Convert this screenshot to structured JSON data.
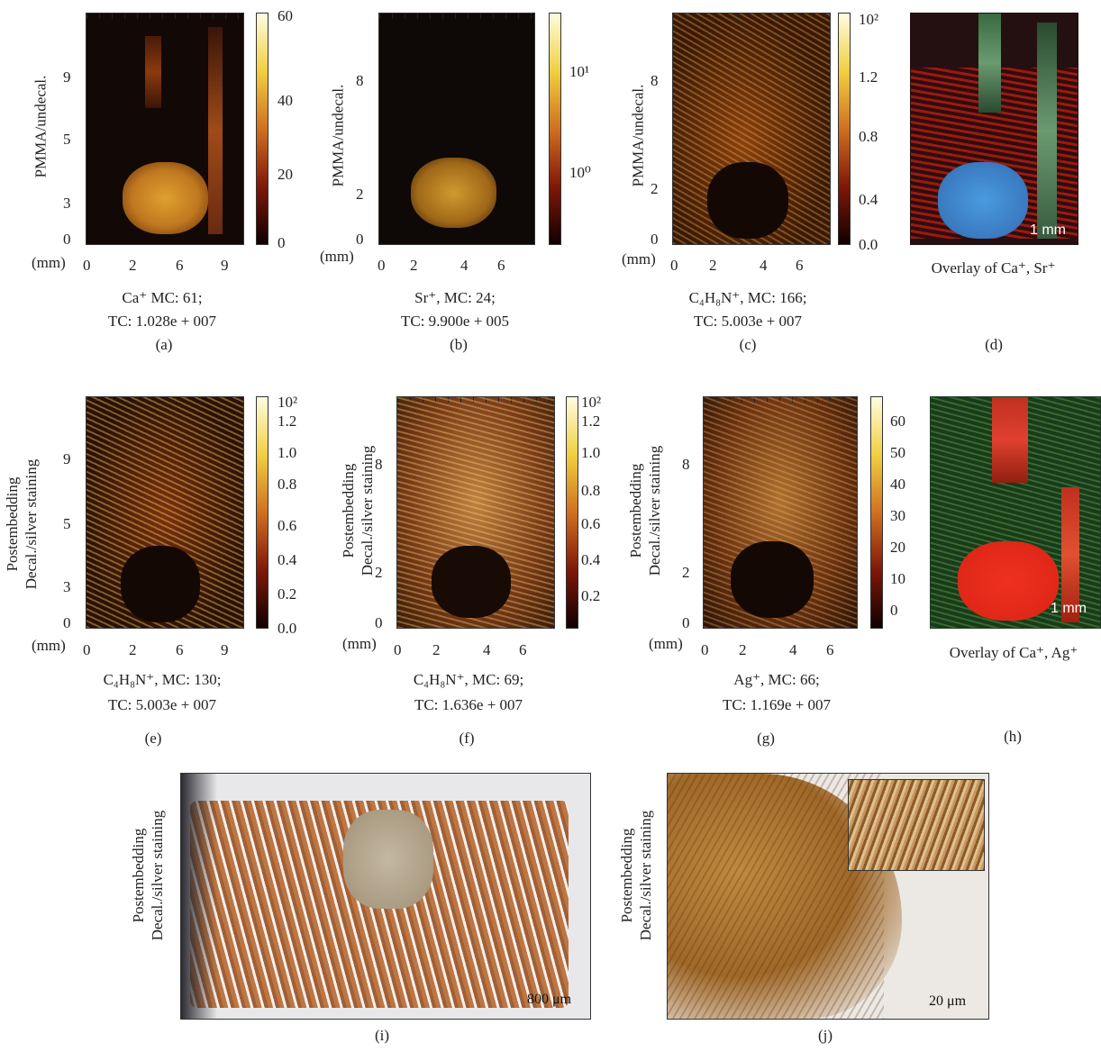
{
  "panels": {
    "a": {
      "label": "(a)",
      "ylabel": "PMMA/undecal.",
      "xunit": "(mm)",
      "xticks": [
        "0",
        "2",
        "6",
        "9"
      ],
      "yticks": [
        "9",
        "5",
        "3",
        "0"
      ],
      "cbar_ticks": [
        "60",
        "40",
        "20",
        "0"
      ],
      "cap1": "Ca⁺ MC: 61;",
      "cap2": "TC: 1.028e + 007"
    },
    "b": {
      "label": "(b)",
      "ylabel": "PMMA/undecal.",
      "xunit": "(mm)",
      "xticks": [
        "0",
        "2",
        "4",
        "6"
      ],
      "yticks": [
        "8",
        "2",
        "0"
      ],
      "cbar_ticks": [
        "10¹",
        "10⁰"
      ],
      "cap1": "Sr⁺, MC: 24;",
      "cap2": "TC: 9.900e + 005"
    },
    "c": {
      "label": "(c)",
      "ylabel": "PMMA/undecal.",
      "xunit": "(mm)",
      "xticks": [
        "0",
        "2",
        "4",
        "6"
      ],
      "yticks": [
        "8",
        "2",
        "0"
      ],
      "cbar_ticks": [
        "10²",
        "1.2",
        "0.8",
        "0.4",
        "0.0"
      ],
      "cap1": "C₄H₈N⁺, MC: 166;",
      "cap2": "TC: 5.003e + 007"
    },
    "d": {
      "label": "(d)",
      "cap1": "Overlay of Ca⁺, Sr⁺",
      "scale": "1 mm"
    },
    "e": {
      "label": "(e)",
      "ylabel1": "Postembedding",
      "ylabel2": "Decal./silver staining",
      "xunit": "(mm)",
      "xticks": [
        "0",
        "2",
        "6",
        "9"
      ],
      "yticks": [
        "9",
        "5",
        "3",
        "0"
      ],
      "cbar_ticks": [
        "10²",
        "1.2",
        "1.0",
        "0.8",
        "0.6",
        "0.4",
        "0.2",
        "0.0"
      ],
      "cap1": "C₄H₈N⁺, MC: 130;",
      "cap2": "TC: 5.003e + 007"
    },
    "f": {
      "label": "(f)",
      "ylabel1": "Postembedding",
      "ylabel2": "Decal./silver staining",
      "xunit": "(mm)",
      "xticks": [
        "0",
        "2",
        "4",
        "6"
      ],
      "yticks": [
        "8",
        "2",
        "0"
      ],
      "cbar_ticks": [
        "10²",
        "1.2",
        "1.0",
        "0.8",
        "0.6",
        "0.4",
        "0.2"
      ],
      "cap1": "C₄H₈N⁺, MC: 69;",
      "cap2": "TC: 1.636e + 007"
    },
    "g": {
      "label": "(g)",
      "ylabel1": "Postembedding",
      "ylabel2": "Decal./silver staining",
      "xunit": "(mm)",
      "xticks": [
        "0",
        "2",
        "4",
        "6"
      ],
      "yticks": [
        "8",
        "2",
        "0"
      ],
      "cbar_ticks": [
        "60",
        "50",
        "40",
        "30",
        "20",
        "10",
        "0"
      ],
      "cap1": "Ag⁺, MC: 66;",
      "cap2": "TC: 1.169e + 007"
    },
    "h": {
      "label": "(h)",
      "cap1": "Overlay of Ca⁺, Ag⁺",
      "scale": "1 mm"
    },
    "i": {
      "label": "(i)",
      "ylabel1": "Postembedding",
      "ylabel2": "Decal./silver staining",
      "scale": "800 μm"
    },
    "j": {
      "label": "(j)",
      "ylabel1": "Postembedding",
      "ylabel2": "Decal./silver staining",
      "scale": "20 μm"
    }
  },
  "colors": {
    "hot_bg": "#1a0a05",
    "hot_mid": "#b8401a",
    "hot_hi": "#f0c040",
    "overlay_bg": "#2a1010"
  }
}
